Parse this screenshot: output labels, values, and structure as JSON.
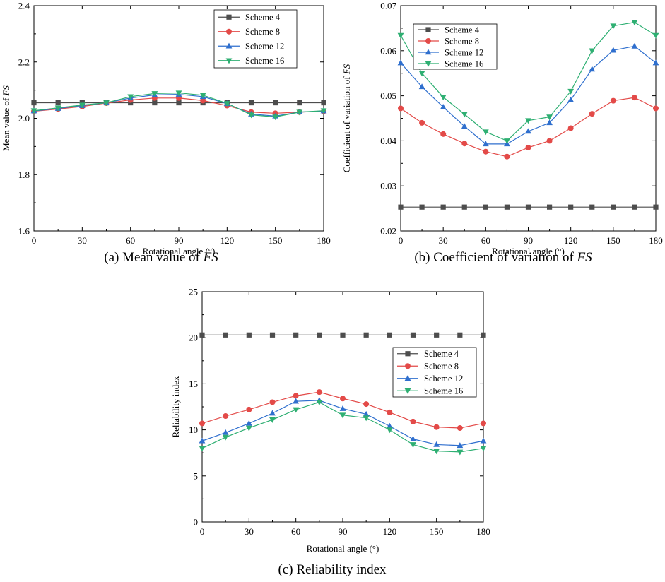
{
  "figure": {
    "series_colors": {
      "Scheme 4": "#4d4d4d",
      "Scheme 8": "#e34a48",
      "Scheme 12": "#2f6fce",
      "Scheme 16": "#2eaf72"
    },
    "series_markers": {
      "Scheme 4": "square",
      "Scheme 8": "circle",
      "Scheme 12": "triangle-up",
      "Scheme 16": "triangle-down"
    }
  },
  "chart_data": [
    {
      "id": "a",
      "type": "line",
      "caption_prefix": "(a) Mean value of ",
      "caption_italic": "FS",
      "xlabel": "Rotational angle (°)",
      "ylabel_prefix": "Mean value of ",
      "ylabel_italic": "FS",
      "xlim": [
        0,
        180
      ],
      "ylim": [
        1.6,
        2.4
      ],
      "xticks": [
        0,
        30,
        60,
        90,
        120,
        150,
        180
      ],
      "yticks": [
        1.6,
        1.8,
        2.0,
        2.2,
        2.4
      ],
      "ytick_labels": [
        "1.6",
        "1.8",
        "2.0",
        "2.2",
        "2.4"
      ],
      "legend_position": "top-right",
      "x": [
        0,
        15,
        30,
        45,
        60,
        75,
        90,
        105,
        120,
        135,
        150,
        165,
        180
      ],
      "series": [
        {
          "name": "Scheme 4",
          "values": [
            2.055,
            2.055,
            2.055,
            2.055,
            2.055,
            2.055,
            2.055,
            2.055,
            2.055,
            2.055,
            2.055,
            2.055,
            2.055
          ]
        },
        {
          "name": "Scheme 8",
          "values": [
            2.025,
            2.033,
            2.042,
            2.054,
            2.065,
            2.072,
            2.072,
            2.063,
            2.045,
            2.022,
            2.018,
            2.022,
            2.025
          ]
        },
        {
          "name": "Scheme 12",
          "values": [
            2.026,
            2.035,
            2.045,
            2.055,
            2.072,
            2.083,
            2.085,
            2.077,
            2.052,
            2.015,
            2.008,
            2.022,
            2.026
          ]
        },
        {
          "name": "Scheme 16",
          "values": [
            2.027,
            2.037,
            2.047,
            2.055,
            2.077,
            2.088,
            2.09,
            2.082,
            2.053,
            2.012,
            2.005,
            2.022,
            2.027
          ]
        }
      ]
    },
    {
      "id": "b",
      "type": "line",
      "caption_prefix": "(b) Coefficient of variation of ",
      "caption_italic": "FS",
      "xlabel": "Rotational angle (°)",
      "ylabel_prefix": "Coefficient of variation of ",
      "ylabel_italic": "FS",
      "xlim": [
        0,
        180
      ],
      "ylim": [
        0.02,
        0.07
      ],
      "xticks": [
        0,
        30,
        60,
        90,
        120,
        150,
        180
      ],
      "yticks": [
        0.02,
        0.03,
        0.04,
        0.05,
        0.06,
        0.07
      ],
      "ytick_labels": [
        "0.02",
        "0.03",
        "0.04",
        "0.05",
        "0.06",
        "0.07"
      ],
      "legend_position": "top-left",
      "x": [
        0,
        15,
        30,
        45,
        60,
        75,
        90,
        105,
        120,
        135,
        150,
        165,
        180
      ],
      "series": [
        {
          "name": "Scheme 4",
          "values": [
            0.0253,
            0.0253,
            0.0253,
            0.0253,
            0.0253,
            0.0253,
            0.0253,
            0.0253,
            0.0253,
            0.0253,
            0.0253,
            0.0253,
            0.0253
          ]
        },
        {
          "name": "Scheme 8",
          "values": [
            0.0472,
            0.044,
            0.0415,
            0.0394,
            0.0376,
            0.0365,
            0.0385,
            0.04,
            0.0428,
            0.046,
            0.0489,
            0.0496,
            0.0472
          ]
        },
        {
          "name": "Scheme 12",
          "values": [
            0.0573,
            0.052,
            0.0475,
            0.0432,
            0.0393,
            0.0393,
            0.0421,
            0.044,
            0.0491,
            0.0559,
            0.0601,
            0.061,
            0.0573
          ]
        },
        {
          "name": "Scheme 16",
          "values": [
            0.0634,
            0.055,
            0.0497,
            0.0459,
            0.042,
            0.04,
            0.0445,
            0.0453,
            0.051,
            0.06,
            0.0655,
            0.0663,
            0.0634
          ]
        }
      ]
    },
    {
      "id": "c",
      "type": "line",
      "caption_prefix": "(c) Reliability index",
      "caption_italic": "",
      "xlabel": "Rotational angle (°)",
      "ylabel_prefix": "Reliability index",
      "ylabel_italic": "",
      "xlim": [
        0,
        180
      ],
      "ylim": [
        0,
        25
      ],
      "xticks": [
        0,
        30,
        60,
        90,
        120,
        150,
        180
      ],
      "yticks": [
        0,
        5,
        10,
        15,
        20,
        25
      ],
      "ytick_labels": [
        "0",
        "5",
        "10",
        "15",
        "20",
        "25"
      ],
      "legend_position": "right",
      "x": [
        0,
        15,
        30,
        45,
        60,
        75,
        90,
        105,
        120,
        135,
        150,
        165,
        180
      ],
      "series": [
        {
          "name": "Scheme 4",
          "values": [
            20.3,
            20.3,
            20.3,
            20.3,
            20.3,
            20.3,
            20.3,
            20.3,
            20.3,
            20.3,
            20.3,
            20.3,
            20.3
          ]
        },
        {
          "name": "Scheme 8",
          "values": [
            10.7,
            11.5,
            12.2,
            13.0,
            13.7,
            14.1,
            13.4,
            12.8,
            11.9,
            10.9,
            10.3,
            10.2,
            10.7
          ]
        },
        {
          "name": "Scheme 12",
          "values": [
            8.8,
            9.7,
            10.7,
            11.8,
            13.1,
            13.2,
            12.3,
            11.7,
            10.4,
            9.0,
            8.4,
            8.3,
            8.8
          ]
        },
        {
          "name": "Scheme 16",
          "values": [
            8.0,
            9.2,
            10.2,
            11.1,
            12.2,
            13.0,
            11.6,
            11.3,
            10.0,
            8.4,
            7.7,
            7.6,
            8.0
          ]
        }
      ]
    }
  ]
}
